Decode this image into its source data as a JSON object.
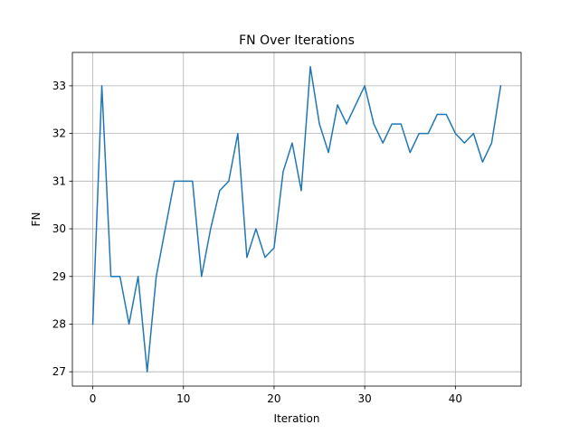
{
  "chart_data": {
    "type": "line",
    "title": "FN Over Iterations",
    "xlabel": "Iteration",
    "ylabel": "FN",
    "xlim": [
      -2.25,
      47.25
    ],
    "ylim": [
      26.7,
      33.7
    ],
    "xticks": [
      0,
      10,
      20,
      30,
      40
    ],
    "yticks": [
      27,
      28,
      29,
      30,
      31,
      32,
      33
    ],
    "grid": true,
    "colors": {
      "line": "#1f77b4",
      "grid": "#b0b0b0",
      "axes": "#000000"
    },
    "series": [
      {
        "x": [
          0,
          1,
          2,
          3,
          4,
          5,
          6,
          7,
          8,
          9,
          10,
          11,
          12,
          13,
          14,
          15,
          16,
          17,
          18,
          19,
          20,
          21,
          22,
          23,
          24,
          25,
          26,
          27,
          28,
          29,
          30,
          31,
          32,
          33,
          34,
          35,
          36,
          37,
          38,
          39,
          40,
          41,
          42,
          43,
          44,
          45
        ],
        "values": [
          28,
          33,
          29,
          29,
          28,
          29,
          27,
          29,
          30,
          31,
          31,
          31,
          29,
          30,
          30.8,
          31,
          32,
          29.4,
          30,
          29.4,
          29.6,
          31.2,
          31.8,
          30.8,
          33.4,
          32.2,
          31.6,
          32.6,
          32.2,
          32.6,
          33,
          32.2,
          31.8,
          32.2,
          32.2,
          31.6,
          32,
          32,
          32.4,
          32.4,
          32,
          31.8,
          32,
          31.4,
          31.8,
          33
        ]
      }
    ]
  }
}
